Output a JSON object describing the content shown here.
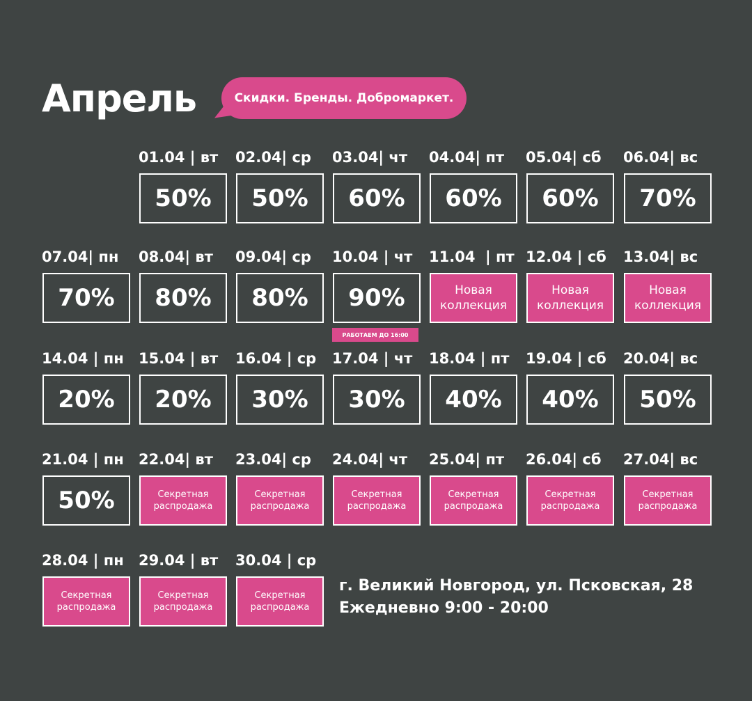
{
  "header": {
    "title": "Апрель",
    "slogan": "Скидки. Бренды. Добромаркет."
  },
  "days": [
    {
      "date": "01.04 | вт",
      "label": "50%",
      "kind": "percent"
    },
    {
      "date": "02.04| ср",
      "label": "50%",
      "kind": "percent"
    },
    {
      "date": "03.04| чт",
      "label": "60%",
      "kind": "percent"
    },
    {
      "date": "04.04| пт",
      "label": "60%",
      "kind": "percent"
    },
    {
      "date": "05.04| сб",
      "label": "60%",
      "kind": "percent"
    },
    {
      "date": "06.04| вс",
      "label": "70%",
      "kind": "percent"
    },
    {
      "date": "07.04| пн",
      "label": "70%",
      "kind": "percent"
    },
    {
      "date": "08.04| вт",
      "label": "80%",
      "kind": "percent"
    },
    {
      "date": "09.04| ср",
      "label": "80%",
      "kind": "percent"
    },
    {
      "date": "10.04 | чт",
      "label": "90%",
      "kind": "percent"
    },
    {
      "date": "11.04  | пт",
      "label": "Новая\nколлекция",
      "kind": "new"
    },
    {
      "date": "12.04 | сб",
      "label": "Новая\nколлекция",
      "kind": "new"
    },
    {
      "date": "13.04| вс",
      "label": "Новая\nколлекция",
      "kind": "new"
    },
    {
      "date": "14.04 | пн",
      "label": "20%",
      "kind": "percent"
    },
    {
      "date": "15.04 | вт",
      "label": "20%",
      "kind": "percent"
    },
    {
      "date": "16.04 | ср",
      "label": "30%",
      "kind": "percent"
    },
    {
      "date": "17.04 | чт",
      "label": "30%",
      "kind": "percent"
    },
    {
      "date": "18.04 | пт",
      "label": "40%",
      "kind": "percent"
    },
    {
      "date": "19.04 | сб",
      "label": "40%",
      "kind": "percent"
    },
    {
      "date": "20.04| вс",
      "label": "50%",
      "kind": "percent"
    },
    {
      "date": "21.04 | пн",
      "label": "50%",
      "kind": "percent"
    },
    {
      "date": "22.04| вт",
      "label": "Секретная\nраспродажа",
      "kind": "secret"
    },
    {
      "date": "23.04| ср",
      "label": "Секретная\nраспродажа",
      "kind": "secret"
    },
    {
      "date": "24.04| чт",
      "label": "Секретная\nраспродажа",
      "kind": "secret"
    },
    {
      "date": "25.04| пт",
      "label": "Секретная\nраспродажа",
      "kind": "secret"
    },
    {
      "date": "26.04| сб",
      "label": "Секретная\nраспродажа",
      "kind": "secret"
    },
    {
      "date": "27.04| вс",
      "label": "Секретная\nраспродажа",
      "kind": "secret"
    },
    {
      "date": "28.04 | пн",
      "label": "Секретная\nраспродажа",
      "kind": "secret"
    },
    {
      "date": "29.04 | вт",
      "label": "Секретная\nраспродажа",
      "kind": "secret"
    },
    {
      "date": "30.04 | ср",
      "label": "Секретная\nраспродажа",
      "kind": "secret"
    }
  ],
  "note_10_04": "РАБОТАЕМ ДО 16:00",
  "footer": {
    "address": "г. Великий Новгород, ул. Псковская, 28",
    "hours": "Ежедневно 9:00 - 20:00"
  },
  "colors": {
    "background": "#3f4443",
    "accent": "#d94a8c",
    "text": "#ffffff"
  }
}
